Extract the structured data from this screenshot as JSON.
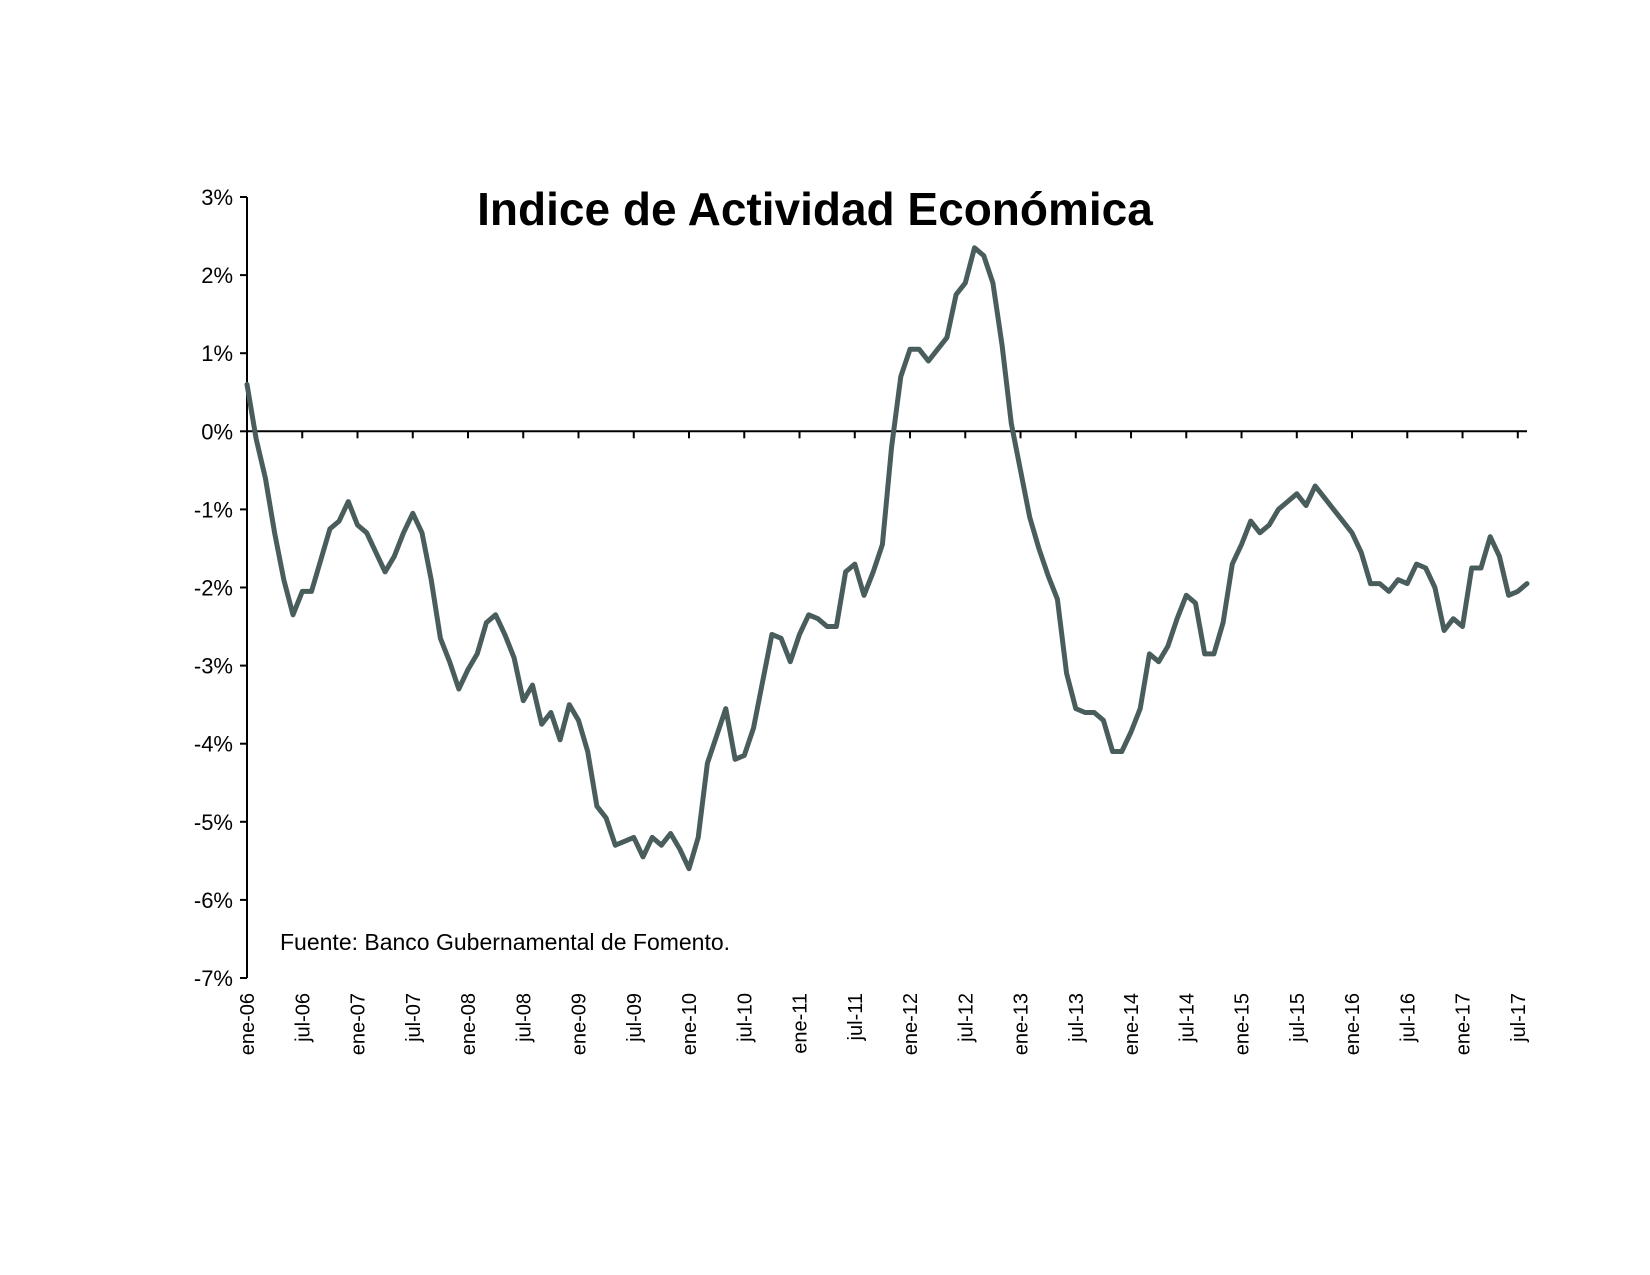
{
  "chart_data": {
    "type": "line",
    "title": "Indice de Actividad Económica",
    "source_note": "Fuente: Banco Gubernamental de Fomento.",
    "ylim": [
      -7,
      3
    ],
    "y_ticks": [
      "3%",
      "2%",
      "1%",
      "0%",
      "-1%",
      "-2%",
      "-3%",
      "-4%",
      "-5%",
      "-6%",
      "-7%"
    ],
    "x_ticks": [
      "ene-06",
      "jul-06",
      "ene-07",
      "jul-07",
      "ene-08",
      "jul-08",
      "ene-09",
      "jul-09",
      "ene-10",
      "jul-10",
      "ene-11",
      "jul-11",
      "ene-12",
      "jul-12",
      "ene-13",
      "jul-13",
      "ene-14",
      "jul-14",
      "ene-15",
      "jul-15",
      "ene-16",
      "jul-16",
      "ene-17",
      "jul-17"
    ],
    "x_start": "ene-06",
    "x_end": "ago-17",
    "grid": false,
    "legend": "none",
    "colors": {
      "series": "#4a5d5d",
      "axis": "#000000"
    },
    "series": [
      {
        "values": [
          0.6,
          -0.1,
          -0.6,
          -1.3,
          -1.9,
          -2.35,
          -2.05,
          -2.05,
          -1.65,
          -1.25,
          -1.15,
          -0.9,
          -1.2,
          -1.3,
          -1.55,
          -1.8,
          -1.6,
          -1.3,
          -1.05,
          -1.3,
          -1.9,
          -2.65,
          -2.95,
          -3.3,
          -3.05,
          -2.85,
          -2.45,
          -2.35,
          -2.6,
          -2.9,
          -3.45,
          -3.25,
          -3.75,
          -3.6,
          -3.95,
          -3.5,
          -3.7,
          -4.1,
          -4.8,
          -4.95,
          -5.3,
          -5.25,
          -5.2,
          -5.45,
          -5.2,
          -5.3,
          -5.15,
          -5.35,
          -5.6,
          -5.2,
          -4.25,
          -3.9,
          -3.55,
          -4.2,
          -4.15,
          -3.8,
          -3.2,
          -2.6,
          -2.65,
          -2.95,
          -2.6,
          -2.35,
          -2.4,
          -2.5,
          -2.5,
          -1.8,
          -1.7,
          -2.1,
          -1.8,
          -1.45,
          -0.2,
          0.7,
          1.05,
          1.05,
          0.9,
          1.05,
          1.2,
          1.75,
          1.9,
          2.35,
          2.25,
          1.9,
          1.1,
          0.1,
          -0.5,
          -1.1,
          -1.5,
          -1.85,
          -2.15,
          -3.1,
          -3.55,
          -3.6,
          -3.6,
          -3.7,
          -4.1,
          -4.1,
          -3.85,
          -3.55,
          -2.85,
          -2.95,
          -2.75,
          -2.4,
          -2.1,
          -2.2,
          -2.85,
          -2.85,
          -2.45,
          -1.7,
          -1.45,
          -1.15,
          -1.3,
          -1.2,
          -1.0,
          -0.9,
          -0.8,
          -0.95,
          -0.7,
          -0.85,
          -1.0,
          -1.15,
          -1.3,
          -1.55,
          -1.95,
          -1.95,
          -2.05,
          -1.9,
          -1.95,
          -1.7,
          -1.75,
          -2.0,
          -2.55,
          -2.4,
          -2.5,
          -1.75,
          -1.75,
          -1.35,
          -1.6,
          -2.1,
          -2.05,
          -1.95
        ]
      }
    ]
  }
}
